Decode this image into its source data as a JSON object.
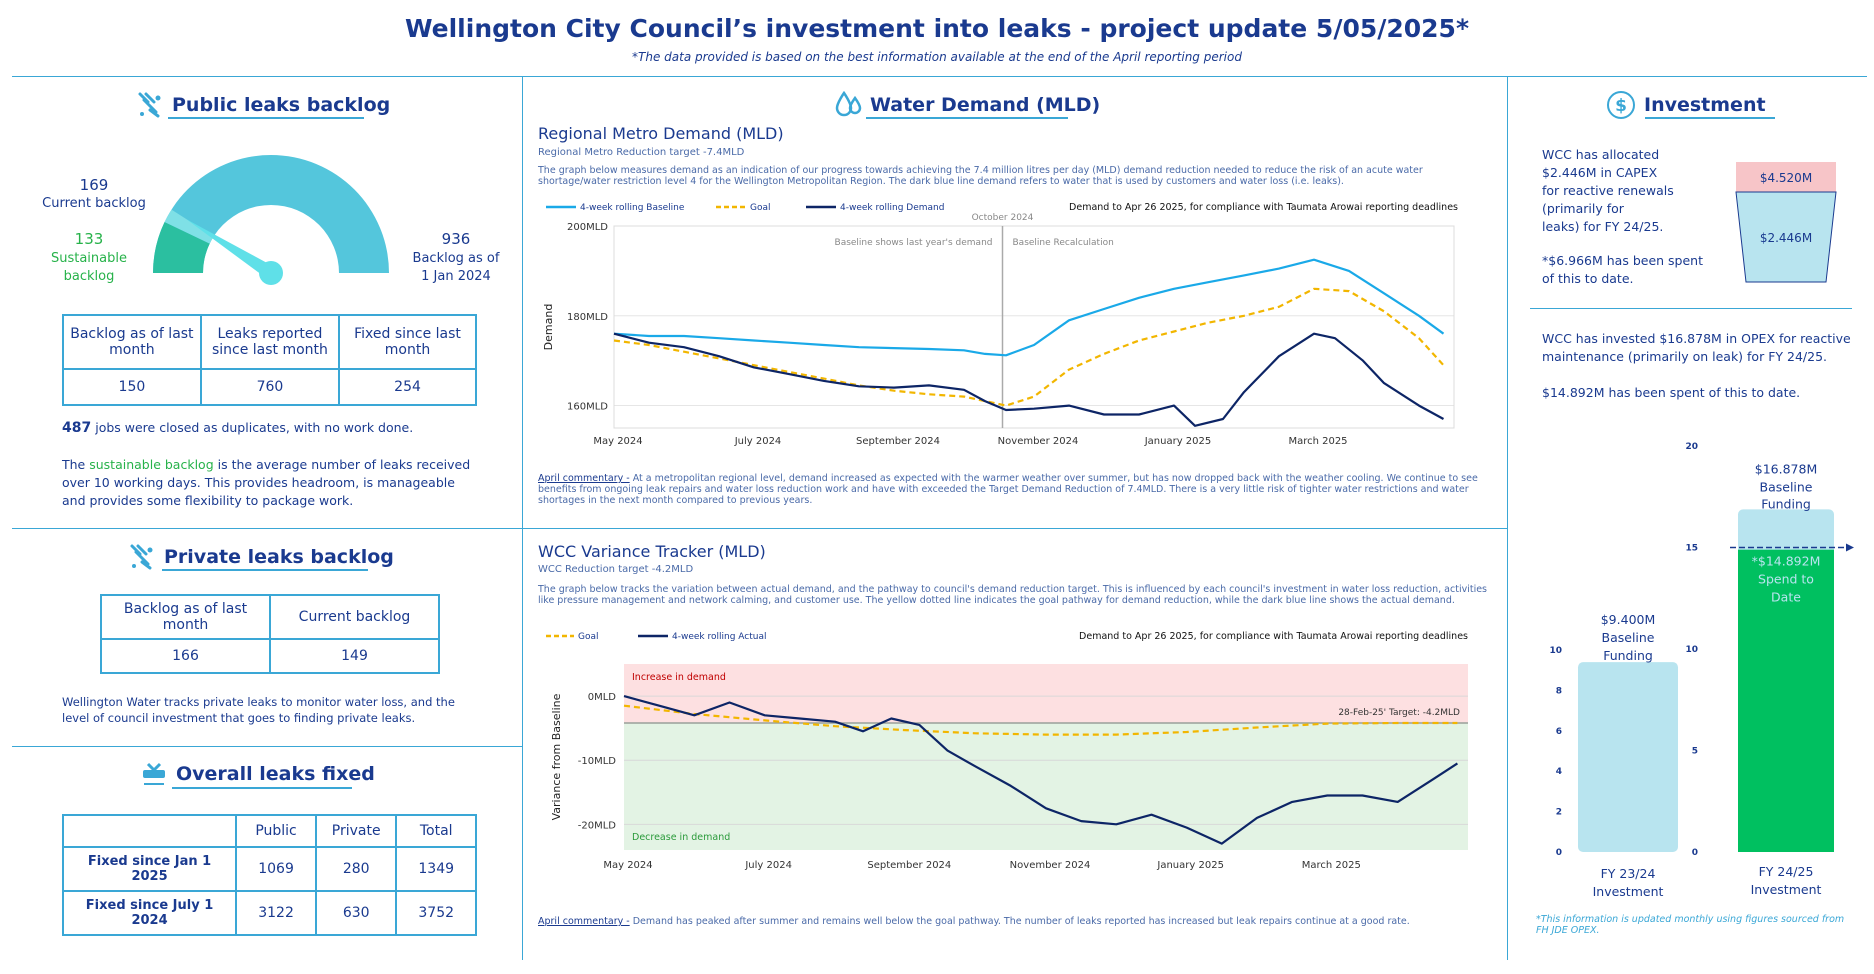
{
  "header": {
    "title": "Wellington City Council’s investment into leaks - project update 5/05/2025*",
    "subtitle": "*The data provided is based on the best information available at the end of the April reporting period"
  },
  "public_backlog": {
    "heading": "Public leaks backlog",
    "current_value": "169",
    "current_label": "Current backlog",
    "sustainable_value": "133",
    "sustainable_label_1": "Sustainable",
    "sustainable_label_2": "backlog",
    "baseline_value": "936",
    "baseline_label_1": "Backlog as of",
    "baseline_label_2": "1 Jan 2024",
    "gauge": {
      "current": 169,
      "sustainable": 133,
      "max": 936
    },
    "table_headers": [
      "Backlog as of last month",
      "Leaks reported since last month",
      "Fixed since last month"
    ],
    "table_values": [
      "150",
      "760",
      "254"
    ],
    "duplicates_number": "487",
    "duplicates_text": "jobs were closed as duplicates, with no work done.",
    "note_prefix": "The",
    "note_highlight": "sustainable backlog",
    "note_rest": "is the average number of leaks received over 10 working days. This provides headroom, is manageable and provides some flexibility to package work."
  },
  "private_backlog": {
    "heading": "Private leaks backlog",
    "table_headers": [
      "Backlog as of last month",
      "Current backlog"
    ],
    "table_values": [
      "166",
      "149"
    ],
    "note": "Wellington Water tracks private leaks to monitor water loss, and the level of council investment that goes to finding private leaks."
  },
  "overall_fixed": {
    "heading": "Overall leaks fixed",
    "columns": [
      "Public",
      "Private",
      "Total"
    ],
    "rows": [
      {
        "label": "Fixed since Jan 1 2025",
        "values": [
          "1069",
          "280",
          "1349"
        ]
      },
      {
        "label": "Fixed since July 1 2024",
        "values": [
          "3122",
          "630",
          "3752"
        ]
      }
    ]
  },
  "water_demand": {
    "heading": "Water Demand (MLD)",
    "regional": {
      "title": "Regional Metro Demand (MLD)",
      "target": "Regional Metro Reduction target -7.4MLD",
      "description": "The graph below measures demand as an indication of our progress towards achieving the 7.4 million litres per day (MLD) demand reduction needed to reduce the risk of an acute water shortage/water restriction level 4 for the Wellington Metropolitan Region. The dark blue line demand refers to water that is used by customers and water loss (i.e. leaks).",
      "legend": [
        "4-week rolling Baseline",
        "Goal",
        "4-week rolling Demand"
      ],
      "note": "Demand to Apr 26 2025, for compliance with Taumata Arowai reporting deadlines",
      "annotation_top": "October 2024",
      "annotation_left": "Baseline shows last year's demand",
      "annotation_right": "Baseline Recalculation",
      "commentary_label": "April commentary -",
      "commentary": "At a metropolitan regional level, demand increased as expected with the warmer weather over summer, but has now dropped back with the weather cooling. We continue to see benefits from ongoing leak repairs and water loss reduction work and have with exceeded the Target Demand Reduction of 7.4MLD. There is a very little risk of tighter water restrictions and water shortages in the next month compared to previous years."
    },
    "variance": {
      "title": "WCC Variance Tracker (MLD)",
      "target": "WCC Reduction target -4.2MLD",
      "description": "The graph below tracks the variation between actual demand, and the pathway to council's demand reduction target. This is influenced by each council's investment in water loss reduction, activities like pressure management and network calming, and customer use. The yellow dotted line indicates the goal pathway for demand reduction, while the dark blue line shows the actual demand.",
      "legend": [
        "Goal",
        "4-week rolling Actual"
      ],
      "note": "Demand to Apr 26 2025, for compliance with Taumata Arowai reporting deadlines",
      "increase_label": "Increase in demand",
      "decrease_label": "Decrease in demand",
      "target_label": "28-Feb-25' Target: -4.2MLD",
      "commentary_label": "April commentary -",
      "commentary": "Demand has peaked after summer and remains well below the goal pathway. The number of leaks reported has increased but leak repairs continue at a good rate."
    }
  },
  "investment": {
    "heading": "Investment",
    "capex_text_1": "WCC has allocated",
    "capex_text_2": "$2.446M in CAPEX",
    "capex_text_3": "for reactive renewals",
    "capex_text_4": "(primarily for",
    "capex_text_5": "leaks) for FY 24/25.",
    "capex_text_6": "*$6.966M has been spent",
    "capex_text_7": "of this to date.",
    "cup_top": "$4.520M",
    "cup_bottom": "$2.446M",
    "opex_text_1": "WCC has invested $16.878M in OPEX for reactive maintenance (primarily on leak) for FY 24/25.",
    "opex_text_2": "$14.892M has been spent of this to date.",
    "footnote": "*This information is updated monthly using figures sourced from FH JDE OPEX.",
    "colors": {
      "light": "#b8e4ef",
      "green": "#00c060",
      "pink": "#f7c5c8"
    }
  },
  "chart_data": [
    {
      "type": "line",
      "title": "Regional Metro Demand (MLD)",
      "xlabel": "",
      "ylabel": "Demand",
      "x_ticks": [
        "May 2024",
        "July 2024",
        "September 2024",
        "November 2024",
        "January 2025",
        "March 2025"
      ],
      "y_ticks": [
        "200MLD",
        "180MLD",
        "160MLD"
      ],
      "ylim": [
        155,
        200
      ],
      "x_range_months": [
        0,
        12
      ],
      "series": [
        {
          "name": "4-week rolling Baseline",
          "color": "#1aa9e8",
          "dash": "solid",
          "x": [
            0.0,
            0.5,
            1.0,
            1.5,
            2.0,
            2.5,
            3.0,
            3.5,
            4.0,
            4.5,
            5.0,
            5.3,
            5.6,
            6.0,
            6.5,
            7.0,
            7.5,
            8.0,
            8.5,
            9.0,
            9.5,
            10.0,
            10.5,
            11.0,
            11.5,
            11.85
          ],
          "y": [
            176,
            175.5,
            175.5,
            175,
            174.5,
            174,
            173.5,
            173,
            172.8,
            172.6,
            172.3,
            171.5,
            171.2,
            173.5,
            179,
            181.5,
            184,
            186,
            187.5,
            189,
            190.5,
            192.5,
            190,
            185,
            180,
            176
          ]
        },
        {
          "name": "Goal",
          "color": "#f2b600",
          "dash": "dashed",
          "x": [
            0.0,
            0.5,
            1.0,
            1.5,
            2.0,
            2.5,
            3.0,
            3.5,
            4.0,
            4.5,
            5.0,
            5.3,
            5.6,
            6.0,
            6.5,
            7.0,
            7.5,
            8.0,
            8.5,
            9.0,
            9.5,
            10.0,
            10.5,
            11.0,
            11.5,
            11.85
          ],
          "y": [
            174.5,
            173.5,
            172,
            170.5,
            169,
            167.5,
            166,
            164.5,
            163.3,
            162.5,
            162,
            161,
            160,
            162,
            168,
            171.5,
            174.5,
            176.5,
            178.5,
            180,
            182,
            186,
            185.5,
            181,
            175,
            169
          ]
        },
        {
          "name": "4-week rolling Demand",
          "color": "#0d2566",
          "dash": "solid",
          "x": [
            0.0,
            0.5,
            1.0,
            1.5,
            2.0,
            2.5,
            3.0,
            3.5,
            4.0,
            4.5,
            5.0,
            5.3,
            5.6,
            6.0,
            6.5,
            7.0,
            7.5,
            8.0,
            8.3,
            8.7,
            9.0,
            9.5,
            10.0,
            10.3,
            10.7,
            11.0,
            11.5,
            11.85
          ],
          "y": [
            176,
            174,
            173,
            171,
            168.5,
            167,
            165.5,
            164.3,
            164,
            164.5,
            163.5,
            161,
            159,
            159.3,
            160,
            158,
            158,
            160,
            155.5,
            157,
            163,
            171,
            176,
            175,
            170,
            165,
            160,
            157
          ]
        }
      ]
    },
    {
      "type": "line",
      "title": "WCC Variance Tracker (MLD)",
      "xlabel": "",
      "ylabel": "Variance from Baseline",
      "x_ticks": [
        "May 2024",
        "July 2024",
        "September 2024",
        "November 2024",
        "January 2025",
        "March 2025"
      ],
      "y_ticks": [
        "0MLD",
        "-10MLD",
        "-20MLD"
      ],
      "ylim": [
        -24,
        5
      ],
      "target": -4.2,
      "series": [
        {
          "name": "Goal",
          "color": "#f2b600",
          "dash": "dashed",
          "x": [
            0.0,
            1.0,
            2.0,
            3.0,
            4.0,
            5.0,
            6.0,
            7.0,
            8.0,
            9.0,
            10.0,
            11.0,
            11.85
          ],
          "y": [
            -1.5,
            -2.8,
            -3.8,
            -4.7,
            -5.3,
            -5.8,
            -6.0,
            -6.0,
            -5.6,
            -4.9,
            -4.3,
            -4.2,
            -4.2
          ]
        },
        {
          "name": "4-week rolling Actual",
          "color": "#0d2566",
          "dash": "solid",
          "x": [
            0.0,
            0.5,
            1.0,
            1.5,
            2.0,
            2.5,
            3.0,
            3.4,
            3.8,
            4.2,
            4.6,
            5.0,
            5.5,
            6.0,
            6.5,
            7.0,
            7.5,
            8.0,
            8.5,
            9.0,
            9.5,
            10.0,
            10.5,
            11.0,
            11.5,
            11.85
          ],
          "y": [
            0,
            -1.5,
            -3,
            -1,
            -3,
            -3.5,
            -4,
            -5.5,
            -3.5,
            -4.5,
            -8.5,
            -11,
            -14,
            -17.5,
            -19.5,
            -20,
            -18.5,
            -20.5,
            -23,
            -19,
            -16.5,
            -15.5,
            -15.5,
            -16.5,
            -13,
            -10.5
          ]
        }
      ]
    },
    {
      "type": "bar",
      "title": "",
      "categories": [
        "FY 23/24 Investment",
        "FY 24/25 Investment"
      ],
      "series": [
        {
          "name": "Baseline Funding",
          "values": [
            9.4,
            16.878
          ]
        },
        {
          "name": "Spend to Date",
          "values": [
            null,
            14.892
          ]
        }
      ],
      "bar_labels": [
        "$9.400M",
        "Baseline",
        "Funding",
        "$16.878M",
        "Baseline",
        "Funding",
        "*$14.892M",
        "Spend to",
        "Date"
      ],
      "axis_left": {
        "ylim": [
          0,
          10
        ],
        "ticks": [
          "10",
          "8",
          "6",
          "4",
          "2",
          "0"
        ]
      },
      "axis_right": {
        "ylim": [
          0,
          20
        ],
        "ticks": [
          "20",
          "15",
          "10",
          "5",
          "0"
        ]
      },
      "category_labels": [
        "FY 23/24",
        "Investment",
        "FY 24/25",
        "Investment"
      ]
    }
  ]
}
